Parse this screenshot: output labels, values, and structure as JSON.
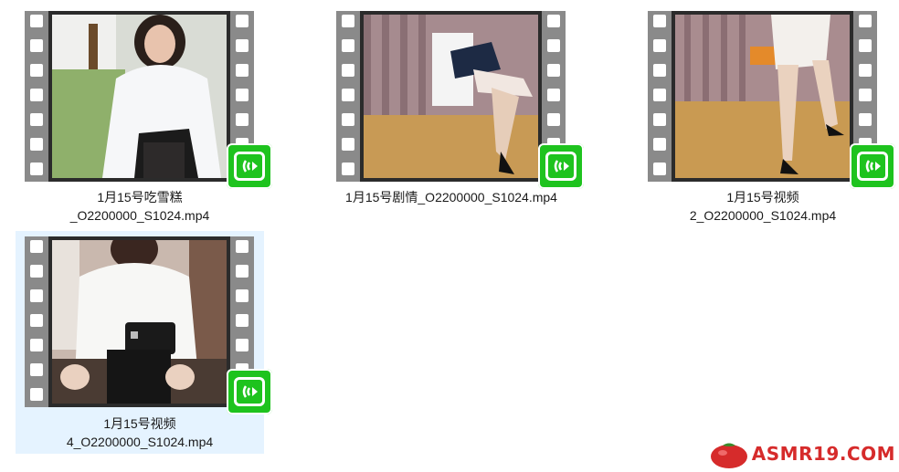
{
  "files": [
    {
      "name_line1": "1月15号吃雪糕",
      "name_line2": "_O2200000_S1024.mp4",
      "selected": false,
      "badge_icon": "green-video-player-icon"
    },
    {
      "name_line1": "1月15号剧情_O2200000_S1024.mp4",
      "name_line2": "",
      "selected": false,
      "badge_icon": "green-video-player-icon"
    },
    {
      "name_line1": "1月15号视频",
      "name_line2": "2_O2200000_S1024.mp4",
      "selected": false,
      "badge_icon": "green-video-player-icon"
    },
    {
      "name_line1": "1月15号视频",
      "name_line2": "4_O2200000_S1024.mp4",
      "selected": true,
      "badge_icon": "green-video-player-icon"
    }
  ],
  "watermark": {
    "text": "ASMR19.COM",
    "icon": "tomato-logo"
  },
  "colors": {
    "selection_bg": "#e5f3ff",
    "badge_green": "#1ec31e",
    "film_gray": "#8a8a8a",
    "watermark_red": "#d62b2b"
  }
}
